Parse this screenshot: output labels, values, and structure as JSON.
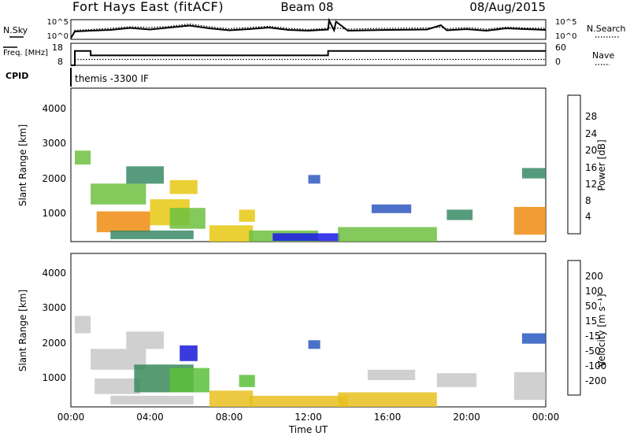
{
  "header": {
    "station": "Fort Hays East (fitACF)",
    "beam": "Beam 08",
    "date": "08/Aug/2015"
  },
  "chart_data": [
    {
      "type": "line",
      "name": "noise-panel",
      "left_label": "N.Sky",
      "right_label": "N.Search",
      "left_ticks": [
        "10^5",
        "10^0"
      ],
      "right_ticks": [
        "10^5",
        "10^0"
      ],
      "ylim_log10": [
        0,
        5
      ],
      "x_hours": [
        0,
        0.2,
        1,
        2,
        3,
        4,
        5,
        6,
        7,
        8,
        9,
        10,
        11,
        12,
        13,
        13.05,
        13.3,
        13.4,
        14,
        16,
        18,
        18.7,
        19,
        20,
        21,
        22,
        23,
        24
      ],
      "sky_log10": [
        0.3,
        2.0,
        2.2,
        2.4,
        2.9,
        2.5,
        3.0,
        3.5,
        2.8,
        2.3,
        2.6,
        3.0,
        2.4,
        2.2,
        2.5,
        4.8,
        2.3,
        4.5,
        2.2,
        2.4,
        2.5,
        3.6,
        2.3,
        2.6,
        2.2,
        2.8,
        2.6,
        2.4
      ],
      "search_log10": [
        0.3,
        2.3,
        2.5,
        2.8,
        3.2,
        3.0,
        3.3,
        3.9,
        3.2,
        2.7,
        3.0,
        3.3,
        2.8,
        2.5,
        2.8,
        3.0,
        2.6,
        2.9,
        2.6,
        2.8,
        2.9,
        3.1,
        2.7,
        3.0,
        2.6,
        3.1,
        2.9,
        2.8
      ]
    },
    {
      "type": "line",
      "name": "frequency-panel",
      "left_label": "Freq. [MHz]",
      "right_label": "Nave",
      "left_ticks": [
        "18",
        "8"
      ],
      "right_ticks": [
        "60",
        "0"
      ],
      "freq_ylim": [
        8,
        18
      ],
      "nave_ylim": [
        0,
        60
      ],
      "freq_steps": [
        [
          0,
          0.2,
          8
        ],
        [
          0.2,
          1.0,
          14.5
        ],
        [
          1.0,
          13.0,
          12.5
        ],
        [
          13.0,
          24.0,
          14.5
        ]
      ],
      "nave_value": 16
    },
    {
      "type": "heatmap",
      "name": "power-panel",
      "cpid_label": "CPID",
      "cpid_value": "themis -3300 IF",
      "ylabel": "Slant Range [km]",
      "ylim": [
        180,
        4600
      ],
      "yticks": [
        "1000",
        "2000",
        "3000",
        "4000"
      ],
      "colorbar_label": "Power [dB]",
      "colorbar_ticks": [
        "4",
        "8",
        "12",
        "16",
        "20",
        "24",
        "28"
      ],
      "colors": [
        "#1a1ae8",
        "#2f58c0",
        "#3a8a66",
        "#6dbf40",
        "#e8c812",
        "#f08c10",
        "#e83010"
      ],
      "patches": [
        {
          "t0": 0.2,
          "t1": 1.0,
          "r0": 2400,
          "r1": 2800,
          "color": 3
        },
        {
          "t0": 1.0,
          "t1": 3.8,
          "r0": 1250,
          "r1": 1850,
          "color": 3
        },
        {
          "t0": 2.8,
          "t1": 4.7,
          "r0": 1850,
          "r1": 2350,
          "color": 2
        },
        {
          "t0": 1.3,
          "t1": 4.0,
          "r0": 450,
          "r1": 1050,
          "color": 5
        },
        {
          "t0": 4.0,
          "t1": 6.0,
          "r0": 650,
          "r1": 1400,
          "color": 4
        },
        {
          "t0": 5.0,
          "t1": 6.8,
          "r0": 550,
          "r1": 1150,
          "color": 3
        },
        {
          "t0": 5.0,
          "t1": 6.4,
          "r0": 1550,
          "r1": 1950,
          "color": 4
        },
        {
          "t0": 2.0,
          "t1": 6.2,
          "r0": 250,
          "r1": 500,
          "color": 2
        },
        {
          "t0": 7.0,
          "t1": 9.2,
          "r0": 180,
          "r1": 650,
          "color": 4
        },
        {
          "t0": 8.5,
          "t1": 9.3,
          "r0": 750,
          "r1": 1100,
          "color": 4
        },
        {
          "t0": 9.0,
          "t1": 12.5,
          "r0": 180,
          "r1": 500,
          "color": 3
        },
        {
          "t0": 10.2,
          "t1": 13.6,
          "r0": 200,
          "r1": 420,
          "color": 0
        },
        {
          "t0": 13.5,
          "t1": 18.5,
          "r0": 180,
          "r1": 600,
          "color": 3
        },
        {
          "t0": 15.2,
          "t1": 17.2,
          "r0": 1000,
          "r1": 1250,
          "color": 1
        },
        {
          "t0": 19.0,
          "t1": 20.3,
          "r0": 800,
          "r1": 1100,
          "color": 2
        },
        {
          "t0": 22.4,
          "t1": 24.0,
          "r0": 380,
          "r1": 1180,
          "color": 5
        },
        {
          "t0": 22.8,
          "t1": 24.0,
          "r0": 2000,
          "r1": 2300,
          "color": 2
        },
        {
          "t0": 12.0,
          "t1": 12.6,
          "r0": 1850,
          "r1": 2100,
          "color": 1
        }
      ]
    },
    {
      "type": "heatmap",
      "name": "velocity-panel",
      "ylabel": "Slant Range [km]",
      "ylim": [
        180,
        4600
      ],
      "yticks": [
        "1000",
        "2000",
        "3000",
        "4000"
      ],
      "xlabel": "Time UT",
      "xticks": [
        "00:00",
        "04:00",
        "08:00",
        "12:00",
        "16:00",
        "20:00",
        "00:00"
      ],
      "colorbar_label": "Velocity [m s⁻¹]",
      "colorbar_ticks": [
        "200",
        "100",
        "50",
        "15",
        "-15",
        "-50",
        "-100",
        "-200"
      ],
      "colors": [
        "#1818d8",
        "#2a58c0",
        "#3a8a5a",
        "#5abf3a",
        "#c8c8c8",
        "#e8c020",
        "#f08a18",
        "#e85a10",
        "#e01010"
      ],
      "patches": [
        {
          "t0": 0.2,
          "t1": 1.0,
          "r0": 2300,
          "r1": 2800,
          "color": 4
        },
        {
          "t0": 1.0,
          "t1": 3.8,
          "r0": 1250,
          "r1": 1850,
          "color": 4
        },
        {
          "t0": 2.8,
          "t1": 4.7,
          "r0": 1850,
          "r1": 2350,
          "color": 4
        },
        {
          "t0": 1.2,
          "t1": 3.5,
          "r0": 550,
          "r1": 1000,
          "color": 4
        },
        {
          "t0": 3.2,
          "t1": 6.2,
          "r0": 600,
          "r1": 1400,
          "color": 2
        },
        {
          "t0": 5.0,
          "t1": 7.0,
          "r0": 600,
          "r1": 1300,
          "color": 3
        },
        {
          "t0": 5.5,
          "t1": 6.4,
          "r0": 1500,
          "r1": 1950,
          "color": 0
        },
        {
          "t0": 2.0,
          "t1": 6.2,
          "r0": 250,
          "r1": 500,
          "color": 4
        },
        {
          "t0": 7.0,
          "t1": 9.2,
          "r0": 180,
          "r1": 650,
          "color": 5
        },
        {
          "t0": 8.5,
          "t1": 9.3,
          "r0": 750,
          "r1": 1100,
          "color": 3
        },
        {
          "t0": 9.0,
          "t1": 14.0,
          "r0": 180,
          "r1": 500,
          "color": 5
        },
        {
          "t0": 13.5,
          "t1": 18.5,
          "r0": 180,
          "r1": 600,
          "color": 5
        },
        {
          "t0": 15.0,
          "t1": 17.4,
          "r0": 950,
          "r1": 1250,
          "color": 4
        },
        {
          "t0": 18.5,
          "t1": 20.5,
          "r0": 750,
          "r1": 1150,
          "color": 4
        },
        {
          "t0": 22.4,
          "t1": 24.0,
          "r0": 380,
          "r1": 1180,
          "color": 4
        },
        {
          "t0": 22.8,
          "t1": 24.0,
          "r0": 2000,
          "r1": 2300,
          "color": 1
        },
        {
          "t0": 12.0,
          "t1": 12.6,
          "r0": 1850,
          "r1": 2100,
          "color": 1
        }
      ]
    }
  ]
}
